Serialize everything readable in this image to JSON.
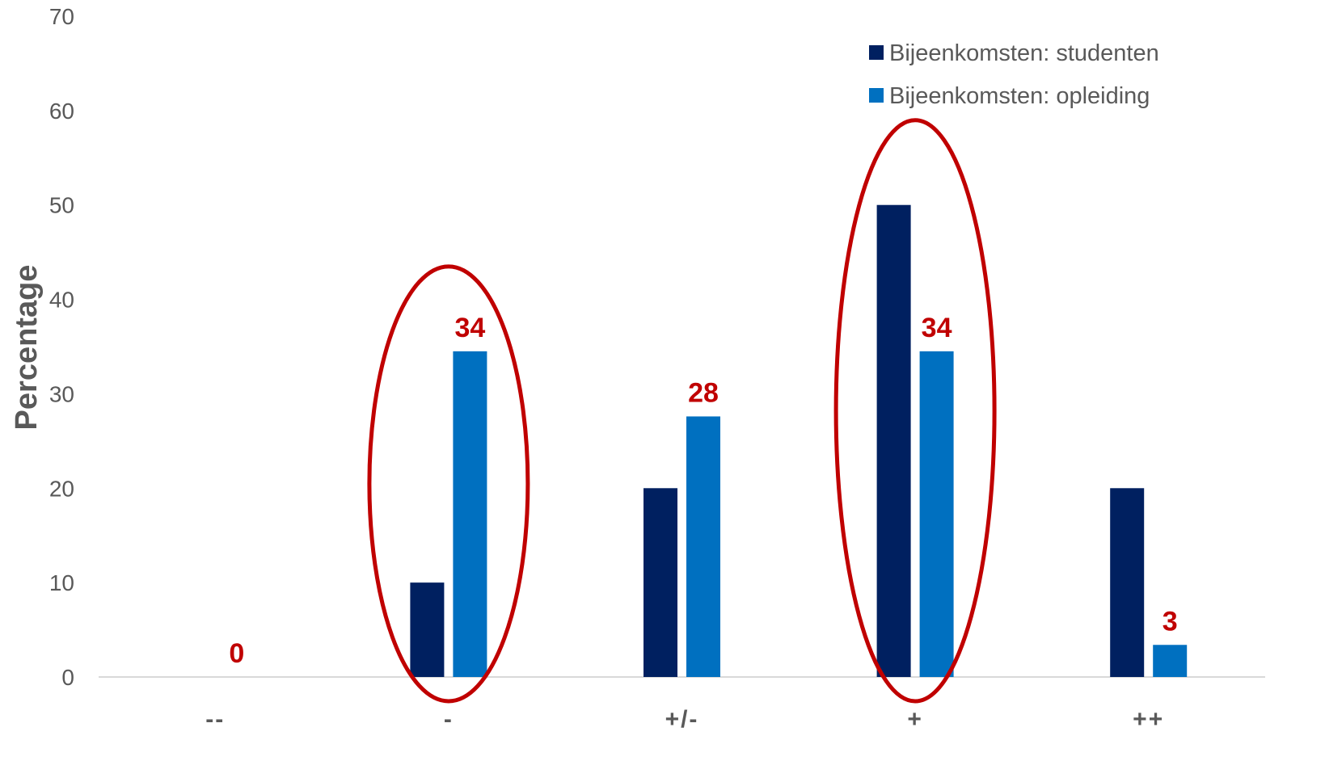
{
  "chart_data": {
    "type": "bar",
    "categories": [
      "--",
      "-",
      "+/-",
      "+",
      "++"
    ],
    "series": [
      {
        "name": "Bijeenkomsten: studenten",
        "color": "#002060",
        "values": [
          0,
          10,
          20,
          50,
          20
        ]
      },
      {
        "name": "Bijeenkomsten: opleiding",
        "color": "#0070c0",
        "values": [
          0,
          34.5,
          27.6,
          34.5,
          3.4
        ]
      }
    ],
    "data_labels": [
      "0",
      "34",
      "28",
      "34",
      "3"
    ],
    "data_label_series": "Bijeenkomsten: opleiding",
    "data_label_color": "#c00000",
    "highlight_categories": [
      "-",
      "+"
    ],
    "highlight_color": "#c00000",
    "ylabel": "Percentage",
    "xlabel": "",
    "ylim": [
      0,
      70
    ],
    "yticks": [
      "0",
      "10",
      "20",
      "30",
      "40",
      "50",
      "60",
      "70"
    ],
    "grid": false,
    "legend_position": "top-right"
  }
}
